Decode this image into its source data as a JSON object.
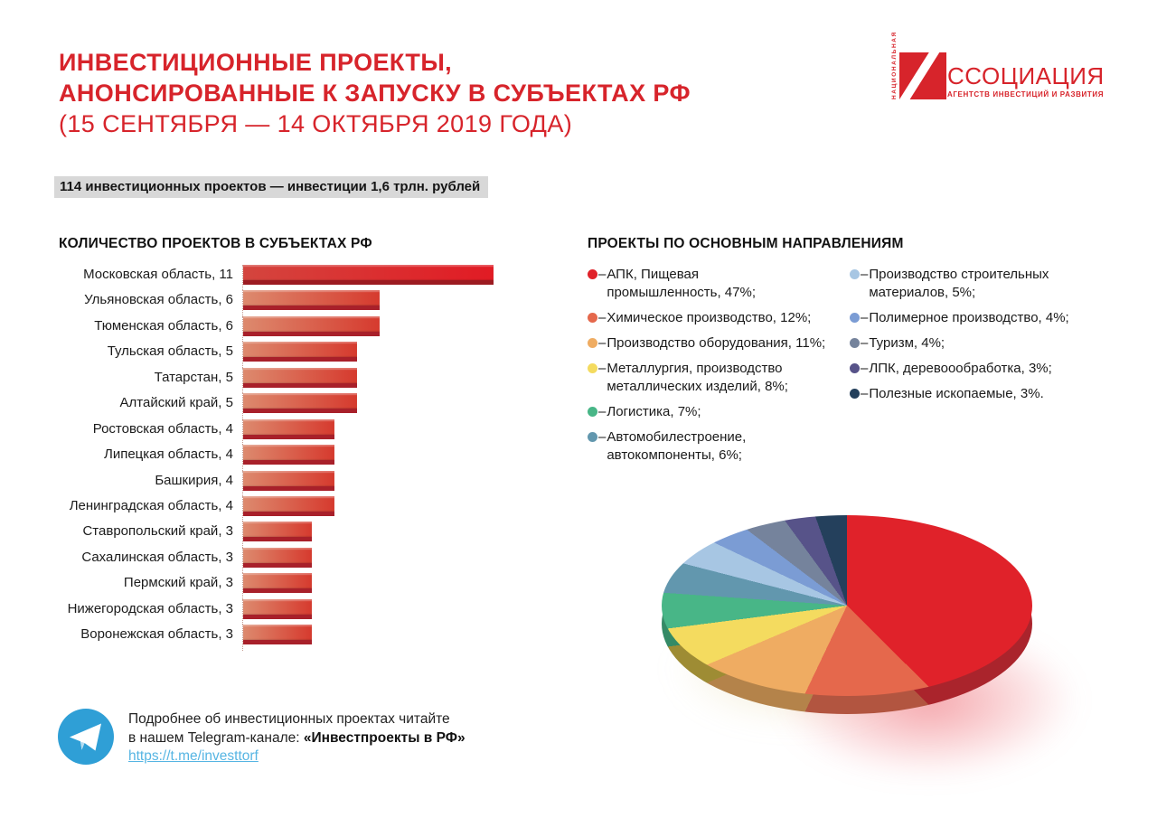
{
  "header": {
    "title_lines": [
      "ИНВЕСТИЦИОННЫЕ ПРОЕКТЫ,",
      "АНОНСИРОВАННЫЕ К ЗАПУСКУ В СУБЪЕКТАХ РФ",
      "(15 СЕНТЯБРЯ — 14 ОКТЯБРЯ 2019 ГОДА)"
    ],
    "title_color": "#d7242b",
    "logo": {
      "vertical_text": "НАЦИОНАЛЬНАЯ",
      "main_text": "ССОЦИАЦИЯ",
      "sub_text": "АГЕНТСТВ ИНВЕСТИЦИЙ И РАЗВИТИЯ",
      "color": "#d7242b"
    }
  },
  "summary_badge": {
    "text": "114 инвестиционных проектов — инвестиции 1,6 трлн. рублей",
    "bg": "#d8d8d8"
  },
  "bar_section": {
    "title": "КОЛИЧЕСТВО ПРОЕКТОВ В СУБЪЕКТАХ РФ"
  },
  "pie_section": {
    "title": "ПРОЕКТЫ ПО ОСНОВНЫМ НАПРАВЛЕНИЯМ",
    "dash": "–"
  },
  "footer": {
    "line1": "Подробнее об инвестиционных проектах читайте",
    "line2_prefix": "в нашем Telegram-канале: ",
    "channel_name": "«Инвестпроекты в РФ»",
    "link": "https://t.me/investtorf",
    "telegram_blue": "#2f9fd6"
  },
  "chart_data": [
    {
      "type": "bar",
      "title": "КОЛИЧЕСТВО ПРОЕКТОВ В СУБЪЕКТАХ РФ",
      "orientation": "horizontal",
      "categories": [
        "Московская область",
        "Ульяновская область",
        "Тюменская область",
        "Тульская область",
        "Татарстан",
        "Алтайский край",
        "Ростовская область",
        "Липецкая область",
        "Башкирия",
        "Ленинградская область",
        "Ставропольский край",
        "Сахалинская область",
        "Пермский край",
        "Нижегородская область",
        "Воронежская область"
      ],
      "values": [
        11,
        6,
        6,
        5,
        5,
        5,
        4,
        4,
        4,
        4,
        3,
        3,
        3,
        3,
        3
      ],
      "xlim": [
        0,
        11
      ],
      "grid": false,
      "bar_color_start": "#dd8a6e",
      "bar_color_end": "#d63a2e",
      "bar_edge_color": "#a8202a",
      "first_bar": {
        "start": "#d4453e",
        "end": "#e11b24",
        "edge": "#9c1b21"
      }
    },
    {
      "type": "pie",
      "title": "ПРОЕКТЫ ПО ОСНОВНЫМ НАПРАВЛЕНИЯМ",
      "start_angle_deg": 0,
      "direction": "clockwise",
      "legend_position": "above",
      "legend_columns": [
        [
          0,
          1,
          2,
          3,
          4,
          5
        ],
        [
          6,
          7,
          8,
          9,
          10
        ]
      ],
      "slices": [
        {
          "label_lines": [
            "АПК, Пищевая",
            "промышленность, 47%;"
          ],
          "label": "АПК, Пищевая промышленность",
          "value": 47,
          "color": "#e0222a",
          "rim_color": "#aa242c"
        },
        {
          "label_lines": [
            "Химическое производство, 12%;"
          ],
          "label": "Химическое производство",
          "value": 12,
          "color": "#e5684c",
          "rim_color": "#b25540"
        },
        {
          "label_lines": [
            "Производство оборудования, 11%;"
          ],
          "label": "Производство оборудования",
          "value": 11,
          "color": "#efac62",
          "rim_color": "#b4834a"
        },
        {
          "label_lines": [
            "Металлургия, производство",
            "металлических изделий, 8%;"
          ],
          "label": "Металлургия, производство металлических изделий",
          "value": 8,
          "color": "#f4db5f",
          "rim_color": "#9e8c34"
        },
        {
          "label_lines": [
            "Логистика, 7%;"
          ],
          "label": "Логистика",
          "value": 7,
          "color": "#48b687",
          "rim_color": "#358a66"
        },
        {
          "label_lines": [
            "Автомобилестроение,",
            "автокомпоненты, 6%;"
          ],
          "label": "Автомобилестроение, автокомпоненты",
          "value": 6,
          "color": "#6297ae",
          "rim_color": "#4a7488"
        },
        {
          "label_lines": [
            "Производство строительных",
            "материалов, 5%;"
          ],
          "label": "Производство строительных материалов",
          "value": 5,
          "color": "#a7c6e3",
          "rim_color": "#7f98ae"
        },
        {
          "label_lines": [
            "Полимерное производство, 4%;"
          ],
          "label": "Полимерное производство",
          "value": 4,
          "color": "#7b9cd4",
          "rim_color": "#5e78a4"
        },
        {
          "label_lines": [
            "Туризм, 4%;"
          ],
          "label": "Туризм",
          "value": 4,
          "color": "#75839c",
          "rim_color": "#596478"
        },
        {
          "label_lines": [
            "ЛПК, деревоообработка, 3%;"
          ],
          "label": "ЛПК, деревоообработка",
          "value": 3,
          "color": "#575389",
          "rim_color": "#413e66"
        },
        {
          "label_lines": [
            "Полезные ископаемые, 3%."
          ],
          "label": "Полезные ископаемые",
          "value": 3,
          "color": "#24405c",
          "rim_color": "#1a2f43"
        }
      ]
    }
  ]
}
